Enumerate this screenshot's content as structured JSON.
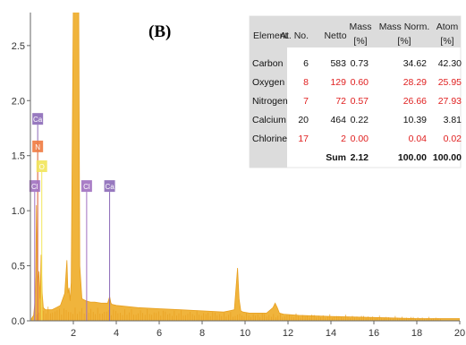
{
  "chart_data": {
    "type": "area",
    "panel_label": "(B)",
    "xlabel": "",
    "ylabel": "",
    "xlim": [
      0,
      20
    ],
    "ylim": [
      0,
      2.8
    ],
    "x_ticks": [
      "2",
      "4",
      "6",
      "8",
      "10",
      "12",
      "14",
      "16",
      "18",
      "20"
    ],
    "y_ticks": [
      "0.0",
      "0.5",
      "1.0",
      "1.5",
      "2.0",
      "2.5"
    ],
    "grid": false,
    "fill_color": "#f0b43c",
    "line_color": "#e8a020",
    "spectrum": {
      "x": [
        0.05,
        0.15,
        0.2,
        0.25,
        0.28,
        0.3,
        0.35,
        0.4,
        0.45,
        0.5,
        0.55,
        0.6,
        0.7,
        0.8,
        0.9,
        1.0,
        1.2,
        1.4,
        1.6,
        1.7,
        1.75,
        1.8,
        1.85,
        1.9,
        2.0,
        2.05,
        2.1,
        2.15,
        2.2,
        2.25,
        2.3,
        2.4,
        2.6,
        2.8,
        3.0,
        3.3,
        3.6,
        3.69,
        3.75,
        3.8,
        4.0,
        4.5,
        5.0,
        6.0,
        7.0,
        8.0,
        9.0,
        9.5,
        9.65,
        9.72,
        9.8,
        9.9,
        10.2,
        11.0,
        11.3,
        11.4,
        11.5,
        11.6,
        11.8,
        12.5,
        14.0,
        16.0,
        18.0,
        20.0
      ],
      "y": [
        0.02,
        0.05,
        0.15,
        0.4,
        1.05,
        0.7,
        0.35,
        0.45,
        0.2,
        0.6,
        0.25,
        0.12,
        0.1,
        0.1,
        0.1,
        0.1,
        0.12,
        0.14,
        0.25,
        0.55,
        0.25,
        0.3,
        0.18,
        0.35,
        2.9,
        2.9,
        2.9,
        2.9,
        2.9,
        2.9,
        0.5,
        0.2,
        0.18,
        0.17,
        0.17,
        0.16,
        0.16,
        0.22,
        0.16,
        0.15,
        0.14,
        0.13,
        0.12,
        0.11,
        0.1,
        0.09,
        0.08,
        0.1,
        0.48,
        0.2,
        0.09,
        0.08,
        0.07,
        0.07,
        0.12,
        0.16,
        0.12,
        0.07,
        0.06,
        0.05,
        0.04,
        0.03,
        0.02,
        0.02
      ]
    },
    "element_markers": [
      {
        "label": "Ca",
        "x": 0.34,
        "y": 1.83,
        "color": "#8c6ab8"
      },
      {
        "label": "N",
        "x": 0.34,
        "y": 1.58,
        "color": "#f07a40"
      },
      {
        "label": "O",
        "x": 0.53,
        "y": 1.4,
        "color": "#f2e65a"
      },
      {
        "label": "Cl",
        "x": 0.2,
        "y": 1.22,
        "color": "#a070c0"
      },
      {
        "label": "Cl",
        "x": 2.62,
        "y": 1.22,
        "color": "#a070c0"
      },
      {
        "label": "Ca",
        "x": 3.69,
        "y": 1.22,
        "color": "#8c6ab8"
      }
    ],
    "table": {
      "headers_line1": [
        "Element",
        "At. No.",
        "Netto",
        "Mass",
        "Mass Norm.",
        "Atom"
      ],
      "headers_line2": [
        "",
        "",
        "",
        "[%]",
        "[%]",
        "[%]"
      ],
      "rows": [
        {
          "element": "Carbon",
          "at_no": "6",
          "netto": "583",
          "mass": "0.73",
          "norm": "34.62",
          "atom": "42.30",
          "color": "#111111"
        },
        {
          "element": "Oxygen",
          "at_no": "8",
          "netto": "129",
          "mass": "0.60",
          "norm": "28.29",
          "atom": "25.95",
          "color": "#e02020"
        },
        {
          "element": "Nitrogen",
          "at_no": "7",
          "netto": "72",
          "mass": "0.57",
          "norm": "26.66",
          "atom": "27.93",
          "color": "#e02020"
        },
        {
          "element": "Calcium",
          "at_no": "20",
          "netto": "464",
          "mass": "0.22",
          "norm": "10.39",
          "atom": "3.81",
          "color": "#111111"
        },
        {
          "element": "Chlorine",
          "at_no": "17",
          "netto": "2",
          "mass": "0.00",
          "norm": "0.04",
          "atom": "0.02",
          "color": "#e02020"
        }
      ],
      "sum": {
        "label": "Sum",
        "mass": "2.12",
        "norm": "100.00",
        "atom": "100.00"
      }
    }
  }
}
